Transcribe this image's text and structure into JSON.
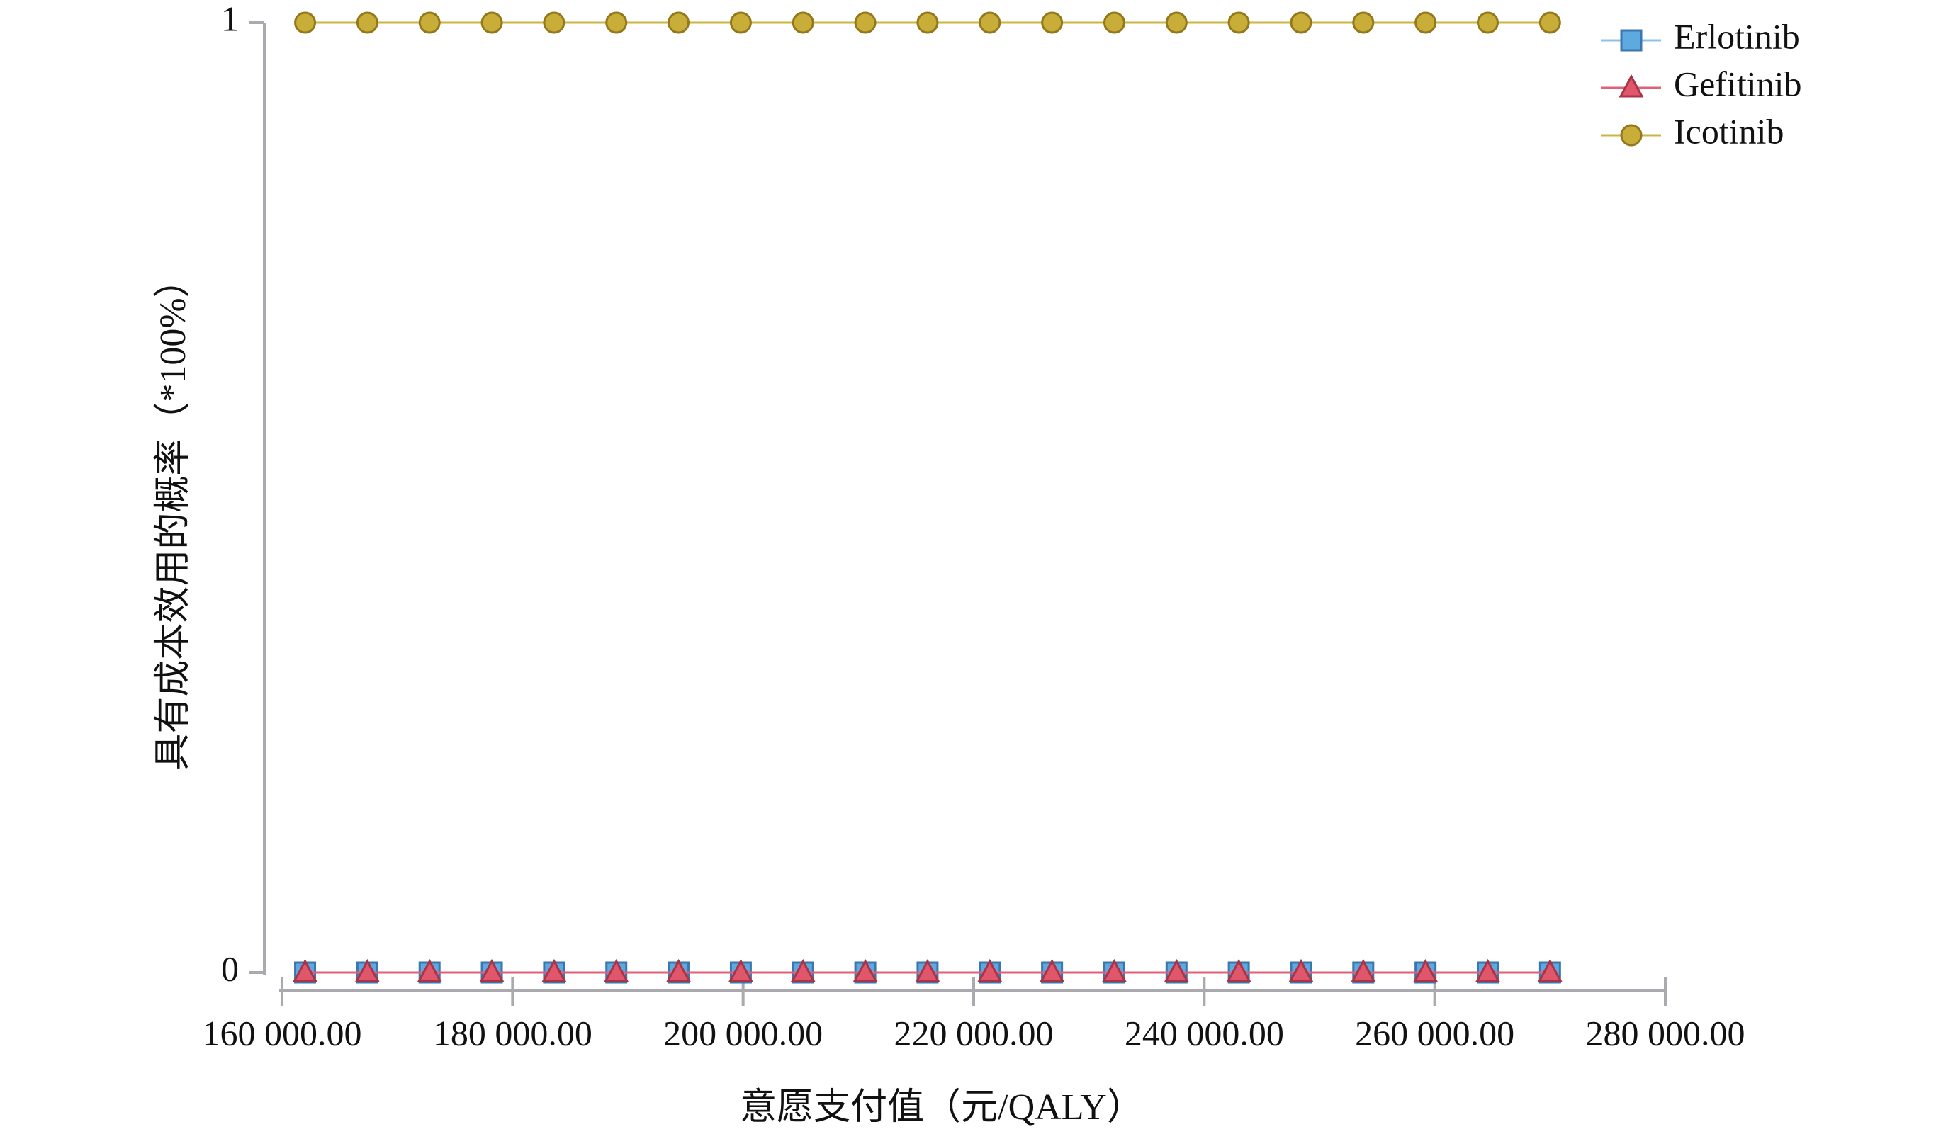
{
  "chart_data": {
    "type": "line",
    "xlabel": "意愿支付值（元/QALY）",
    "ylabel": "具有成本效用的概率（*100%）",
    "xlim": [
      160000,
      280000
    ],
    "ylim": [
      0,
      1
    ],
    "xtick_values": [
      160000,
      180000,
      200000,
      220000,
      240000,
      260000,
      280000
    ],
    "xticks": [
      "160 000.00",
      "180 000.00",
      "200 000.00",
      "220 000.00",
      "240 000.00",
      "260 000.00",
      "280 000.00"
    ],
    "ytick_values": [
      0,
      1
    ],
    "yticks": [
      "0",
      "1"
    ],
    "grid": false,
    "legend": "top-right",
    "axis_color": "#a9a9ae",
    "x": [
      162000,
      167400,
      172800,
      178200,
      183600,
      189000,
      194400,
      199800,
      205200,
      210600,
      216000,
      221400,
      226800,
      232200,
      237600,
      243000,
      248400,
      253800,
      259200,
      264600,
      270000
    ],
    "series": [
      {
        "name": "Erlotinib",
        "marker": "square",
        "color": "#5ea9e0",
        "stroke": "#3b76ad",
        "line_color": "#8fc1e8",
        "values": [
          0,
          0,
          0,
          0,
          0,
          0,
          0,
          0,
          0,
          0,
          0,
          0,
          0,
          0,
          0,
          0,
          0,
          0,
          0,
          0,
          0
        ]
      },
      {
        "name": "Gefitinib",
        "marker": "triangle",
        "color": "#e0566b",
        "stroke": "#a83447",
        "line_color": "#e0607a",
        "values": [
          0,
          0,
          0,
          0,
          0,
          0,
          0,
          0,
          0,
          0,
          0,
          0,
          0,
          0,
          0,
          0,
          0,
          0,
          0,
          0,
          0
        ]
      },
      {
        "name": "Icotinib",
        "marker": "circle",
        "color": "#c8ad38",
        "stroke": "#93791c",
        "line_color": "#cdb543",
        "values": [
          1,
          1,
          1,
          1,
          1,
          1,
          1,
          1,
          1,
          1,
          1,
          1,
          1,
          1,
          1,
          1,
          1,
          1,
          1,
          1,
          1
        ]
      }
    ]
  }
}
